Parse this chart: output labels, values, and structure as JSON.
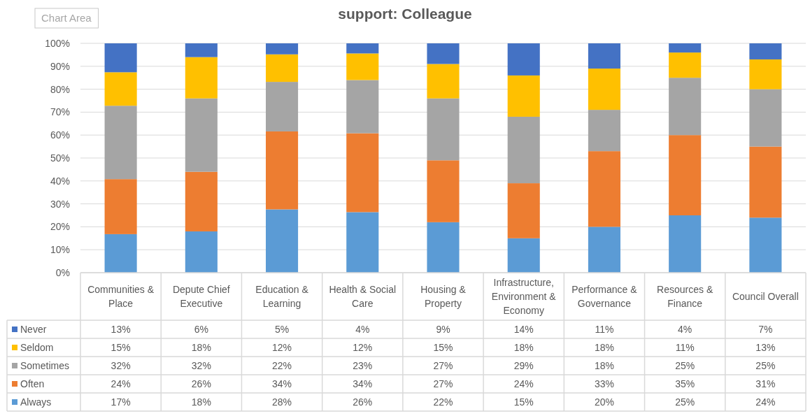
{
  "chart_data": {
    "type": "bar",
    "title": "support: Colleague",
    "stacked": true,
    "categories": [
      "Communities & Place",
      "Depute Chief Executive",
      "Education & Learning",
      "Health & Social Care",
      "Housing & Property",
      "Infrastructure, Environment & Economy",
      "Performance & Governance",
      "Resources & Finance",
      "Council Overall"
    ],
    "series": [
      {
        "name": "Always",
        "color": "#5b9bd5",
        "values": [
          16.8,
          18,
          27.6,
          26.4,
          22,
          15,
          20,
          25,
          24
        ],
        "value_labels": [
          "17%",
          "18%",
          "28%",
          "26%",
          "22%",
          "15%",
          "20%",
          "25%",
          "24%"
        ]
      },
      {
        "name": "Often",
        "color": "#ed7d31",
        "values": [
          24,
          26,
          34,
          34.4,
          27,
          24,
          33,
          35,
          31
        ],
        "value_labels": [
          "24%",
          "26%",
          "34%",
          "34%",
          "27%",
          "24%",
          "33%",
          "35%",
          "31%"
        ]
      },
      {
        "name": "Sometimes",
        "color": "#a5a5a5",
        "values": [
          32,
          32,
          21.6,
          23.2,
          27,
          29,
          18,
          25,
          25
        ],
        "value_labels": [
          "32%",
          "32%",
          "22%",
          "23%",
          "27%",
          "29%",
          "18%",
          "25%",
          "25%"
        ]
      },
      {
        "name": "Seldom",
        "color": "#ffc000",
        "values": [
          14.6,
          18,
          12,
          11.6,
          15,
          18,
          18,
          11,
          13
        ],
        "value_labels": [
          "15%",
          "18%",
          "12%",
          "12%",
          "15%",
          "18%",
          "18%",
          "11%",
          "13%"
        ]
      },
      {
        "name": "Never",
        "color": "#4472c4",
        "values": [
          12.6,
          6,
          4.8,
          4.4,
          9,
          14,
          11,
          4,
          7
        ],
        "value_labels": [
          "13%",
          "6%",
          "5%",
          "4%",
          "9%",
          "14%",
          "11%",
          "4%",
          "7%"
        ]
      }
    ],
    "ylim": [
      0,
      100
    ],
    "yticks": [
      {
        "value": 0,
        "label": "0%"
      },
      {
        "value": 10,
        "label": "10%"
      },
      {
        "value": 20,
        "label": "20%"
      },
      {
        "value": 30,
        "label": "30%"
      },
      {
        "value": 40,
        "label": "40%"
      },
      {
        "value": 50,
        "label": "50%"
      },
      {
        "value": 60,
        "label": "60%"
      },
      {
        "value": 70,
        "label": "70%"
      },
      {
        "value": 80,
        "label": "80%"
      },
      {
        "value": 90,
        "label": "90%"
      },
      {
        "value": 100,
        "label": "100%"
      }
    ],
    "grid": "y",
    "legend": "bottom left",
    "annotations": [
      "Chart Area"
    ]
  }
}
